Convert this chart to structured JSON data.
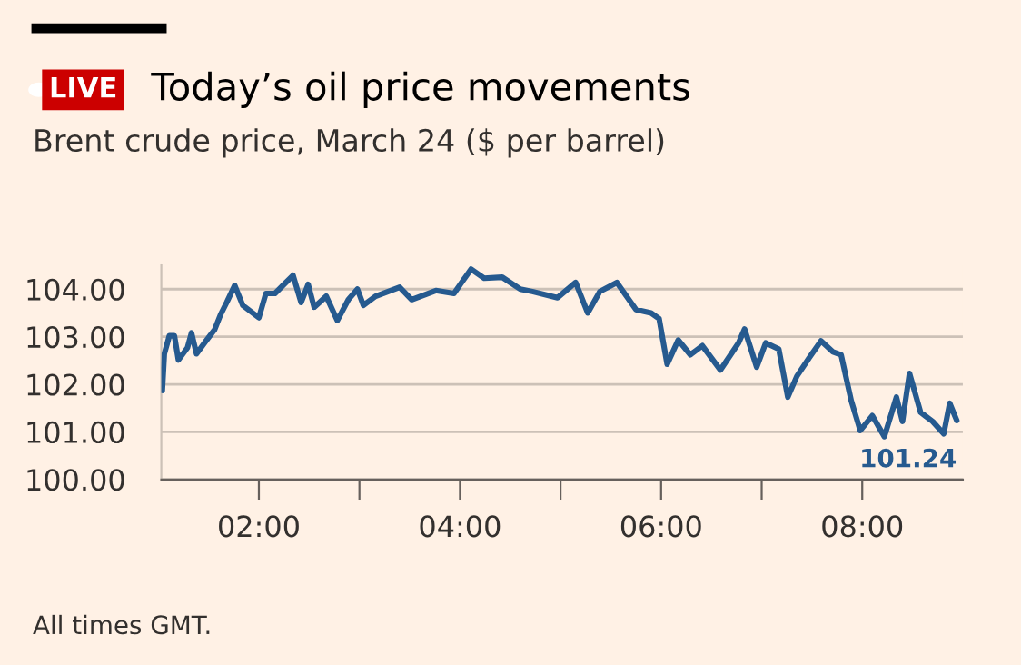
{
  "chart_data": {
    "type": "line",
    "title": "Today’s oil price movements",
    "subtitle": "Brent crude price, March 24 ($ per barrel)",
    "annotations": [
      "LIVE",
      "All times GMT.",
      {
        "text": "101.24",
        "x": 8.94,
        "y": 101.24
      }
    ],
    "series": [
      {
        "color": "#265a8f",
        "x": [
          1.04,
          1.06,
          1.11,
          1.16,
          1.2,
          1.29,
          1.33,
          1.38,
          1.47,
          1.56,
          1.62,
          1.68,
          1.76,
          1.84,
          2.0,
          2.07,
          2.16,
          2.25,
          2.34,
          2.42,
          2.49,
          2.55,
          2.67,
          2.78,
          2.89,
          2.98,
          3.04,
          3.16,
          3.4,
          3.52,
          3.76,
          3.94,
          4.11,
          4.24,
          4.42,
          4.6,
          4.72,
          4.97,
          5.15,
          5.27,
          5.39,
          5.56,
          5.75,
          5.9,
          5.98,
          6.06,
          6.17,
          6.29,
          6.41,
          6.59,
          6.77,
          6.83,
          6.95,
          7.04,
          7.17,
          7.26,
          7.35,
          7.47,
          7.59,
          7.71,
          7.79,
          7.89,
          7.98,
          8.1,
          8.22,
          8.34,
          8.4,
          8.47,
          8.58,
          8.7,
          8.81,
          8.87,
          8.94
        ],
        "values": [
          101.87,
          102.64,
          103.02,
          103.02,
          102.51,
          102.77,
          103.08,
          102.64,
          102.9,
          103.15,
          103.47,
          103.72,
          104.08,
          103.66,
          103.4,
          103.91,
          103.91,
          104.1,
          104.29,
          103.72,
          104.1,
          103.62,
          103.85,
          103.34,
          103.78,
          104.0,
          103.66,
          103.85,
          104.04,
          103.78,
          103.97,
          103.91,
          104.42,
          104.23,
          104.25,
          104.0,
          103.95,
          103.82,
          104.14,
          103.5,
          103.95,
          104.14,
          103.57,
          103.5,
          103.38,
          102.42,
          102.93,
          102.62,
          102.81,
          102.3,
          102.87,
          103.16,
          102.36,
          102.87,
          102.74,
          101.73,
          102.17,
          102.55,
          102.91,
          102.68,
          102.62,
          101.66,
          101.03,
          101.34,
          100.9,
          101.73,
          101.22,
          102.23,
          101.41,
          101.22,
          100.96,
          101.6,
          101.24
        ]
      }
    ],
    "xlim": [
      1.03,
      9.0
    ],
    "xticks": [
      {
        "value": 2,
        "label": "02:00"
      },
      {
        "value": 3,
        "label": null
      },
      {
        "value": 4,
        "label": "04:00"
      },
      {
        "value": 5,
        "label": null
      },
      {
        "value": 6,
        "label": "06:00"
      },
      {
        "value": 7,
        "label": null
      },
      {
        "value": 8,
        "label": "08:00"
      }
    ],
    "ylim": [
      100,
      104.5
    ],
    "yticks": [
      {
        "value": 100,
        "label": "100.00"
      },
      {
        "value": 101,
        "label": "101.00"
      },
      {
        "value": 102,
        "label": "102.00"
      },
      {
        "value": 103,
        "label": "103.00"
      },
      {
        "value": 104,
        "label": "104.00"
      }
    ],
    "grid": "y",
    "line_style": "solid",
    "marker": "none"
  }
}
